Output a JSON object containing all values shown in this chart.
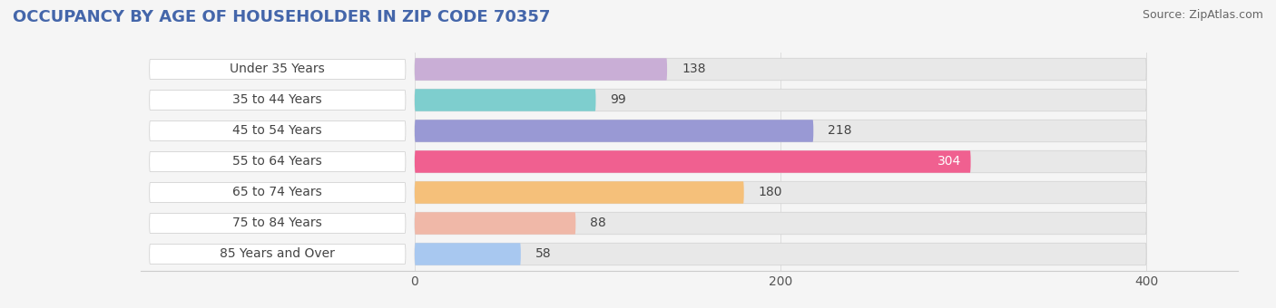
{
  "title": "OCCUPANCY BY AGE OF HOUSEHOLDER IN ZIP CODE 70357",
  "source": "Source: ZipAtlas.com",
  "categories": [
    "Under 35 Years",
    "35 to 44 Years",
    "45 to 54 Years",
    "55 to 64 Years",
    "65 to 74 Years",
    "75 to 84 Years",
    "85 Years and Over"
  ],
  "values": [
    138,
    99,
    218,
    304,
    180,
    88,
    58
  ],
  "bar_colors": [
    "#c9aed6",
    "#7ecece",
    "#9999d4",
    "#f06090",
    "#f5c07a",
    "#f0b8a8",
    "#a8c8f0"
  ],
  "bar_bg_color": "#e8e8e8",
  "label_bg_color": "#ffffff",
  "xlim_data": [
    0,
    400
  ],
  "xticks": [
    0,
    200,
    400
  ],
  "title_fontsize": 13,
  "source_fontsize": 9,
  "label_fontsize": 10,
  "value_fontsize": 10,
  "bg_color": "#f5f5f5",
  "bar_height": 0.72,
  "title_color": "#4466aa",
  "label_color": "#444444",
  "value_color_dark": "#444444",
  "value_color_light": "#ffffff",
  "grid_color": "#dddddd",
  "spine_color": "#cccccc"
}
